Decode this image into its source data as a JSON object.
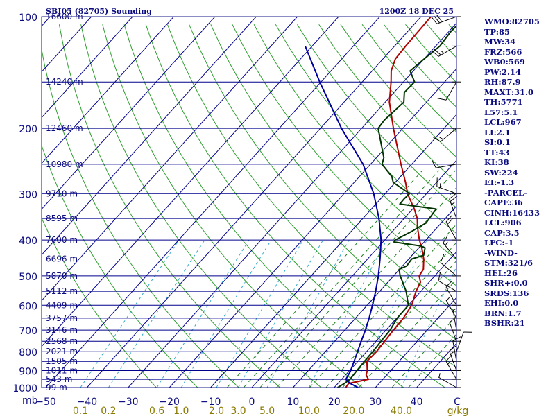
{
  "header": {
    "station": "SBJ05 (82705) Sounding",
    "valid_time": "1200Z 18 DEC 25"
  },
  "chart_data": {
    "type": "line",
    "title": "SBJ05 (82705) Sounding",
    "subtitle": "1200Z 18 DEC 25",
    "xlabel": "C",
    "ylabel": "mb",
    "xlim": [
      -50,
      50
    ],
    "ylim": [
      1000,
      100
    ],
    "temperature_ticks": [
      -50,
      -40,
      -30,
      -20,
      -10,
      0,
      10,
      20,
      30,
      40
    ],
    "pressure_ticks": [
      100,
      200,
      300,
      400,
      500,
      600,
      700,
      800,
      900,
      1000
    ],
    "mixing_ratio_ticks": [
      {
        "label": "0.1",
        "value": 0.1
      },
      {
        "label": "0.2",
        "value": 0.2
      },
      {
        "label": "0.6",
        "value": 0.6
      },
      {
        "label": "1.0",
        "value": 1.0
      },
      {
        "label": "2.0",
        "value": 2.0
      },
      {
        "label": "3.0",
        "value": 3.0
      },
      {
        "label": "5.0",
        "value": 5.0
      },
      {
        "label": "10.0",
        "value": 10.0
      },
      {
        "label": "20.0",
        "value": 20.0
      },
      {
        "label": "40.0",
        "value": 40.0
      }
    ],
    "mixing_ratio_unit": "g/kg",
    "height_labels": [
      {
        "pressure": 100,
        "label": "16600 m"
      },
      {
        "pressure": 150,
        "label": "14240 m"
      },
      {
        "pressure": 200,
        "label": "12460 m"
      },
      {
        "pressure": 250,
        "label": "10980 m"
      },
      {
        "pressure": 300,
        "label": "9710 m"
      },
      {
        "pressure": 350,
        "label": "8595 m"
      },
      {
        "pressure": 400,
        "label": "7600 m"
      },
      {
        "pressure": 450,
        "label": "6696 m"
      },
      {
        "pressure": 500,
        "label": "5870 m"
      },
      {
        "pressure": 550,
        "label": "5112 m"
      },
      {
        "pressure": 600,
        "label": "4409 m"
      },
      {
        "pressure": 650,
        "label": "3757 m"
      },
      {
        "pressure": 700,
        "label": "3146 m"
      },
      {
        "pressure": 750,
        "label": "2568 m"
      },
      {
        "pressure": 800,
        "label": "2021 m"
      },
      {
        "pressure": 850,
        "label": "1505 m"
      },
      {
        "pressure": 900,
        "label": "1011 m"
      },
      {
        "pressure": 950,
        "label": "543 m"
      },
      {
        "pressure": 1000,
        "label": "99 m"
      }
    ],
    "series": [
      {
        "name": "Temperature",
        "color": "#b00000",
        "points": [
          [
            1000,
            22.8
          ],
          [
            975,
            22.6
          ],
          [
            950,
            26.5
          ],
          [
            925,
            25.0
          ],
          [
            900,
            24.3
          ],
          [
            850,
            22.2
          ],
          [
            800,
            22.4
          ],
          [
            750,
            22.1
          ],
          [
            700,
            21.8
          ],
          [
            650,
            21.6
          ],
          [
            600,
            20.8
          ],
          [
            550,
            18.8
          ],
          [
            520,
            17.9
          ],
          [
            500,
            16.2
          ],
          [
            480,
            15.8
          ],
          [
            450,
            13.6
          ],
          [
            420,
            10.7
          ],
          [
            400,
            8.4
          ],
          [
            370,
            5.2
          ],
          [
            350,
            3.2
          ],
          [
            330,
            0.4
          ],
          [
            300,
            -4.6
          ],
          [
            280,
            -7.5
          ],
          [
            250,
            -12.6
          ],
          [
            200,
            -22.3
          ],
          [
            170,
            -29.0
          ],
          [
            150,
            -33.0
          ],
          [
            140,
            -35.4
          ],
          [
            130,
            -37.0
          ],
          [
            120,
            -37.3
          ],
          [
            100,
            -37.6
          ]
        ]
      },
      {
        "name": "Dewpoint",
        "color": "#003300",
        "points": [
          [
            1000,
            20.8
          ],
          [
            975,
            21.6
          ],
          [
            950,
            22.0
          ],
          [
            925,
            21.9
          ],
          [
            900,
            21.8
          ],
          [
            850,
            21.6
          ],
          [
            800,
            21.5
          ],
          [
            750,
            21.2
          ],
          [
            700,
            21.0
          ],
          [
            650,
            20.1
          ],
          [
            600,
            20.0
          ],
          [
            550,
            16.4
          ],
          [
            520,
            13.6
          ],
          [
            500,
            11.6
          ],
          [
            480,
            9.9
          ],
          [
            470,
            11.0
          ],
          [
            450,
            10.7
          ],
          [
            440,
            12.8
          ],
          [
            420,
            11.5
          ],
          [
            415,
            10.0
          ],
          [
            405,
            2.7
          ],
          [
            400,
            2.5
          ],
          [
            380,
            4.6
          ],
          [
            360,
            6.3
          ],
          [
            330,
            5.7
          ],
          [
            320,
            -4.2
          ],
          [
            310,
            -4.3
          ],
          [
            300,
            -4.1
          ],
          [
            280,
            -10.5
          ],
          [
            270,
            -12.1
          ],
          [
            250,
            -17.2
          ],
          [
            240,
            -18.2
          ],
          [
            200,
            -26.0
          ],
          [
            190,
            -26.3
          ],
          [
            170,
            -25.5
          ],
          [
            160,
            -27.5
          ],
          [
            150,
            -27.3
          ],
          [
            140,
            -30.8
          ],
          [
            130,
            -30.0
          ],
          [
            120,
            -29.0
          ],
          [
            110,
            -29.5
          ],
          [
            100,
            -29.2
          ]
        ]
      },
      {
        "name": "Parcel",
        "color": "#0000a0",
        "points": [
          [
            1000,
            25.8
          ],
          [
            975,
            23.0
          ],
          [
            950,
            21.0
          ],
          [
            906,
            20.4
          ],
          [
            850,
            19.1
          ],
          [
            800,
            17.8
          ],
          [
            750,
            16.4
          ],
          [
            700,
            15.0
          ],
          [
            650,
            13.3
          ],
          [
            600,
            11.3
          ],
          [
            550,
            9.0
          ],
          [
            500,
            6.3
          ],
          [
            450,
            3.0
          ],
          [
            400,
            -0.9
          ],
          [
            350,
            -6.1
          ],
          [
            300,
            -12.8
          ],
          [
            250,
            -21.8
          ],
          [
            200,
            -34.9
          ],
          [
            150,
            -50.3
          ],
          [
            120,
            -61.7
          ]
        ]
      }
    ],
    "wind_barbs": [
      {
        "pressure": 1000,
        "direction": 300,
        "speed": 5
      },
      {
        "pressure": 950,
        "direction": 330,
        "speed": 15
      },
      {
        "pressure": 900,
        "direction": 340,
        "speed": 15
      },
      {
        "pressure": 850,
        "direction": 350,
        "speed": 10
      },
      {
        "pressure": 800,
        "direction": 20,
        "speed": 10
      },
      {
        "pressure": 750,
        "direction": 340,
        "speed": 5
      },
      {
        "pressure": 700,
        "direction": 350,
        "speed": 5
      },
      {
        "pressure": 650,
        "direction": 330,
        "speed": 5
      },
      {
        "pressure": 600,
        "direction": 330,
        "speed": 10
      },
      {
        "pressure": 550,
        "direction": 300,
        "speed": 10
      },
      {
        "pressure": 500,
        "direction": 310,
        "speed": 10
      },
      {
        "pressure": 450,
        "direction": 320,
        "speed": 15
      },
      {
        "pressure": 400,
        "direction": 330,
        "speed": 20
      },
      {
        "pressure": 350,
        "direction": 340,
        "speed": 25
      },
      {
        "pressure": 300,
        "direction": 290,
        "speed": 15
      },
      {
        "pressure": 250,
        "direction": 260,
        "speed": 10
      },
      {
        "pressure": 200,
        "direction": 230,
        "speed": 15
      },
      {
        "pressure": 150,
        "direction": 210,
        "speed": 10
      },
      {
        "pressure": 120,
        "direction": 240,
        "speed": 25
      },
      {
        "pressure": 100,
        "direction": 250,
        "speed": 30
      }
    ]
  },
  "indices": [
    "WMO:82705",
    "TP:85",
    "MW:34",
    "FRZ:566",
    "WB0:569",
    "PW:2.14",
    "RH:87.9",
    "MAXT:31.0",
    "TH:5771",
    "L57:5.1",
    "LCL:967",
    "LI:2.1",
    "SI:0.1",
    "TT:43",
    "KI:38",
    "SW:224",
    "EI:-1.3",
    "-PARCEL-",
    "CAPE:36",
    "CINH:16433",
    "LCL:906",
    "CAP:3.5",
    "LFC:-1",
    "-WIND-",
    "STM:321/6",
    "HEL:26",
    "SHR+:0.0",
    "SRDS:136",
    "EHI:0.0",
    "BRN:1.7",
    "BSHR:21"
  ],
  "colors": {
    "isobar": "#00008b",
    "isotherm": "#00008b",
    "dry_adiabat": "#2e9e2e",
    "moist_adiabat": "#1c7c1c",
    "mixing_ratio": "#33aacc",
    "text_blue": "#0b0b80",
    "tick_yellow": "#8b7a00",
    "frame": "#1a1a8a"
  }
}
